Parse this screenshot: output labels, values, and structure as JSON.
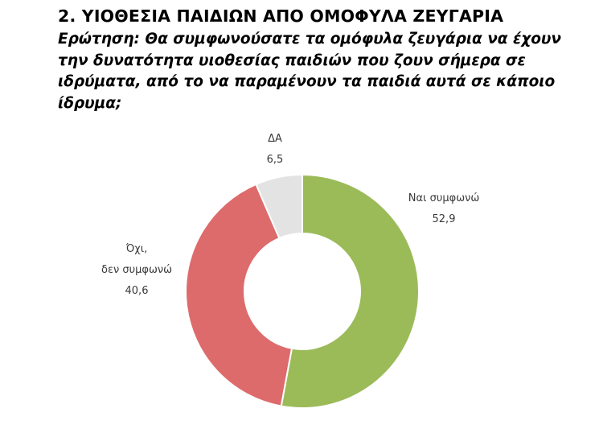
{
  "heading": {
    "title": "2. ΥΙΟΘΕΣΙΑ ΠΑΙΔΙΩΝ ΑΠΟ ΟΜΟΦΥΛΑ ΖΕΥΓΑΡΙΑ",
    "question": "Ερώτηση: Θα συμφωνούσατε τα ομόφυλα ζευγάρια να έχουν την δυνατότητα υιοθεσίας παιδιών που ζουν σήμερα σε ιδρύματα, από το να παραμένουν τα παιδιά αυτά σε κάποιο ίδρυμα;"
  },
  "chart_data": {
    "type": "pie",
    "variant": "donut",
    "start": "top",
    "direction": "clockwise",
    "legend": "none",
    "slices": [
      {
        "label": "Ναι συμφωνώ",
        "value": 52.9,
        "value_text": "52,9",
        "color": "#9bbb59"
      },
      {
        "label": "Όχι, δεν συμφωνώ",
        "value": 40.6,
        "value_text": "40,6",
        "color": "#dd6b6b"
      },
      {
        "label": "ΔΑ",
        "value": 6.5,
        "value_text": "6,5",
        "color": "#e3e3e3"
      }
    ]
  }
}
